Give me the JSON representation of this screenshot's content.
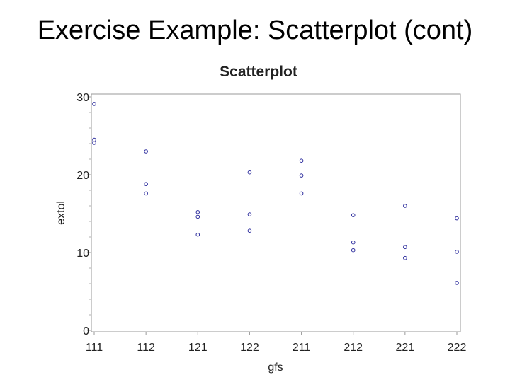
{
  "slide": {
    "title": "Exercise Example: Scatterplot (cont)"
  },
  "colors": {
    "marker": "#2e2e9e",
    "frame": "#9a9a9a",
    "text": "#222222"
  },
  "chart_data": {
    "type": "scatter",
    "title": "Scatterplot",
    "xlabel": "gfs",
    "ylabel": "extol",
    "x_categories": [
      "111",
      "112",
      "121",
      "122",
      "211",
      "212",
      "221",
      "222"
    ],
    "yticks": [
      "0",
      "10",
      "20",
      "30"
    ],
    "ylim": [
      0,
      30
    ],
    "grid": false,
    "marker": "open-circle",
    "series": [
      {
        "points": [
          {
            "x": "111",
            "y": 29.1
          },
          {
            "x": "111",
            "y": 24.5
          },
          {
            "x": "111",
            "y": 24.1
          },
          {
            "x": "112",
            "y": 23.0
          },
          {
            "x": "112",
            "y": 18.8
          },
          {
            "x": "112",
            "y": 17.6
          },
          {
            "x": "121",
            "y": 15.2
          },
          {
            "x": "121",
            "y": 14.6
          },
          {
            "x": "121",
            "y": 12.3
          },
          {
            "x": "122",
            "y": 20.3
          },
          {
            "x": "122",
            "y": 14.9
          },
          {
            "x": "122",
            "y": 12.8
          },
          {
            "x": "211",
            "y": 21.8
          },
          {
            "x": "211",
            "y": 19.9
          },
          {
            "x": "211",
            "y": 17.6
          },
          {
            "x": "212",
            "y": 14.8
          },
          {
            "x": "212",
            "y": 11.3
          },
          {
            "x": "212",
            "y": 10.3
          },
          {
            "x": "221",
            "y": 16.0
          },
          {
            "x": "221",
            "y": 10.7
          },
          {
            "x": "221",
            "y": 9.3
          },
          {
            "x": "222",
            "y": 14.4
          },
          {
            "x": "222",
            "y": 10.1
          },
          {
            "x": "222",
            "y": 6.1
          }
        ]
      }
    ]
  }
}
